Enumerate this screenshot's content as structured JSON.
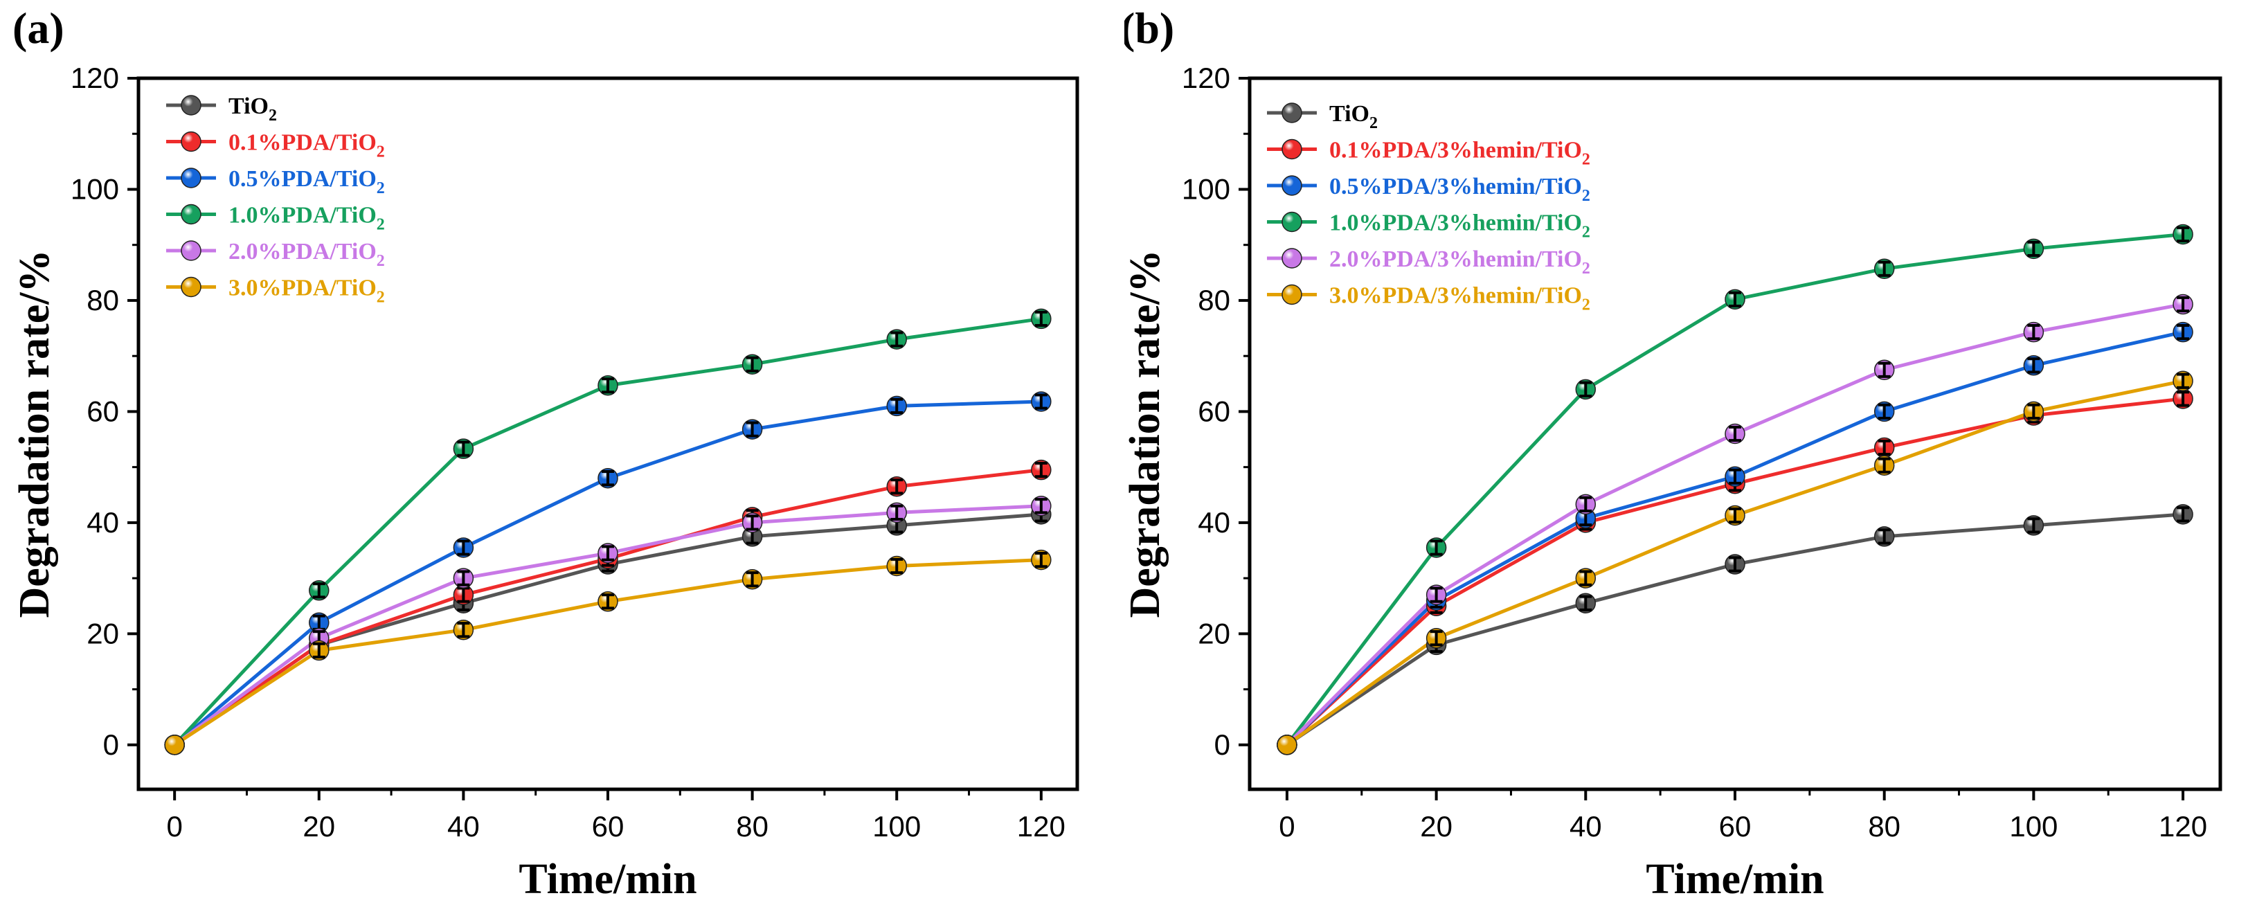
{
  "chart_data": [
    {
      "type": "line",
      "panel_label": "(a)",
      "xlabel": "Time/min",
      "ylabel": "Degradation rate/%",
      "xlim": [
        -5,
        125
      ],
      "ylim": [
        -8,
        120
      ],
      "xticks": [
        0,
        20,
        40,
        60,
        80,
        100,
        120
      ],
      "yticks": [
        0,
        20,
        40,
        60,
        80,
        100,
        120
      ],
      "legend_position": "top-left",
      "x": [
        0,
        20,
        40,
        60,
        80,
        100,
        120
      ],
      "series": [
        {
          "name": "TiO",
          "sub": "2",
          "color": "#555555",
          "values": [
            0,
            18,
            25.5,
            32.5,
            37.5,
            39.5,
            41.5
          ],
          "errors": [
            0,
            1.2,
            1.2,
            1.2,
            1.2,
            1.2,
            1.2
          ]
        },
        {
          "name": "0.1%PDA/TiO",
          "sub": "2",
          "color": "#ee2c2c",
          "values": [
            0,
            18,
            27,
            33.5,
            41,
            46.5,
            49.5
          ],
          "errors": [
            0,
            1.2,
            1.2,
            1.2,
            1.2,
            1.2,
            1.2
          ]
        },
        {
          "name": "0.5%PDA/TiO",
          "sub": "2",
          "color": "#1565d8",
          "values": [
            0,
            22,
            35.5,
            48,
            56.8,
            61,
            61.8
          ],
          "errors": [
            0,
            1.2,
            1.2,
            1.2,
            1.2,
            1.2,
            1.2
          ]
        },
        {
          "name": "1.0%PDA/TiO",
          "sub": "2",
          "color": "#16a05e",
          "values": [
            0,
            27.8,
            53.3,
            64.7,
            68.5,
            73,
            76.7
          ],
          "errors": [
            0,
            1.2,
            1.2,
            1.2,
            1.2,
            1.2,
            1.2
          ]
        },
        {
          "name": "2.0%PDA/TiO",
          "sub": "2",
          "color": "#c878e6",
          "values": [
            0,
            19.2,
            30,
            34.5,
            40,
            41.8,
            43
          ],
          "errors": [
            0,
            1.2,
            1.2,
            1.2,
            1.2,
            1.2,
            1.2
          ]
        },
        {
          "name": "3.0%PDA/TiO",
          "sub": "2",
          "color": "#e2a000",
          "values": [
            0,
            17,
            20.7,
            25.8,
            29.8,
            32.2,
            33.3
          ],
          "errors": [
            0,
            1.2,
            1.2,
            1.2,
            1.2,
            1.2,
            1.2
          ]
        }
      ]
    },
    {
      "type": "line",
      "panel_label": "(b)",
      "xlabel": "Time/min",
      "ylabel": "Degradation rate/%",
      "xlim": [
        -5,
        125
      ],
      "ylim": [
        -8,
        120
      ],
      "xticks": [
        0,
        20,
        40,
        60,
        80,
        100,
        120
      ],
      "yticks": [
        0,
        20,
        40,
        60,
        80,
        100,
        120
      ],
      "legend_position": "top-left",
      "x": [
        0,
        20,
        40,
        60,
        80,
        100,
        120
      ],
      "series": [
        {
          "name": "TiO",
          "sub": "2",
          "color": "#555555",
          "values": [
            0,
            18,
            25.5,
            32.5,
            37.5,
            39.5,
            41.5
          ],
          "errors": [
            0,
            1.2,
            1.2,
            1.2,
            1.2,
            1.2,
            1.2
          ]
        },
        {
          "name": "0.1%PDA/3%hemin/TiO",
          "sub": "2",
          "color": "#ee2c2c",
          "values": [
            0,
            25,
            40,
            47,
            53.5,
            59.3,
            62.3
          ],
          "errors": [
            0,
            1.2,
            1.2,
            1.2,
            1.2,
            1.2,
            1.2
          ]
        },
        {
          "name": "0.5%PDA/3%hemin/TiO",
          "sub": "2",
          "color": "#1565d8",
          "values": [
            0,
            26,
            40.8,
            48.3,
            60,
            68.3,
            74.3
          ],
          "errors": [
            0,
            1.2,
            1.2,
            1.2,
            1.2,
            1.2,
            1.2
          ]
        },
        {
          "name": "1.0%PDA/3%hemin/TiO",
          "sub": "2",
          "color": "#16a05e",
          "values": [
            0,
            35.5,
            64,
            80.2,
            85.7,
            89.3,
            91.9
          ],
          "errors": [
            0,
            1.2,
            1.2,
            1.2,
            1.2,
            1.2,
            1.2
          ]
        },
        {
          "name": "2.0%PDA/3%hemin/TiO",
          "sub": "2",
          "color": "#c878e6",
          "values": [
            0,
            27,
            43.3,
            56,
            67.5,
            74.3,
            79.3
          ],
          "errors": [
            0,
            1.2,
            1.2,
            1.2,
            1.2,
            1.2,
            1.2
          ]
        },
        {
          "name": "3.0%PDA/3%hemin/TiO",
          "sub": "2",
          "color": "#e2a000",
          "values": [
            0,
            19.2,
            30,
            41.3,
            50.3,
            60,
            65.5
          ],
          "errors": [
            0,
            1.2,
            1.2,
            1.2,
            1.2,
            1.2,
            1.2
          ]
        }
      ]
    }
  ]
}
